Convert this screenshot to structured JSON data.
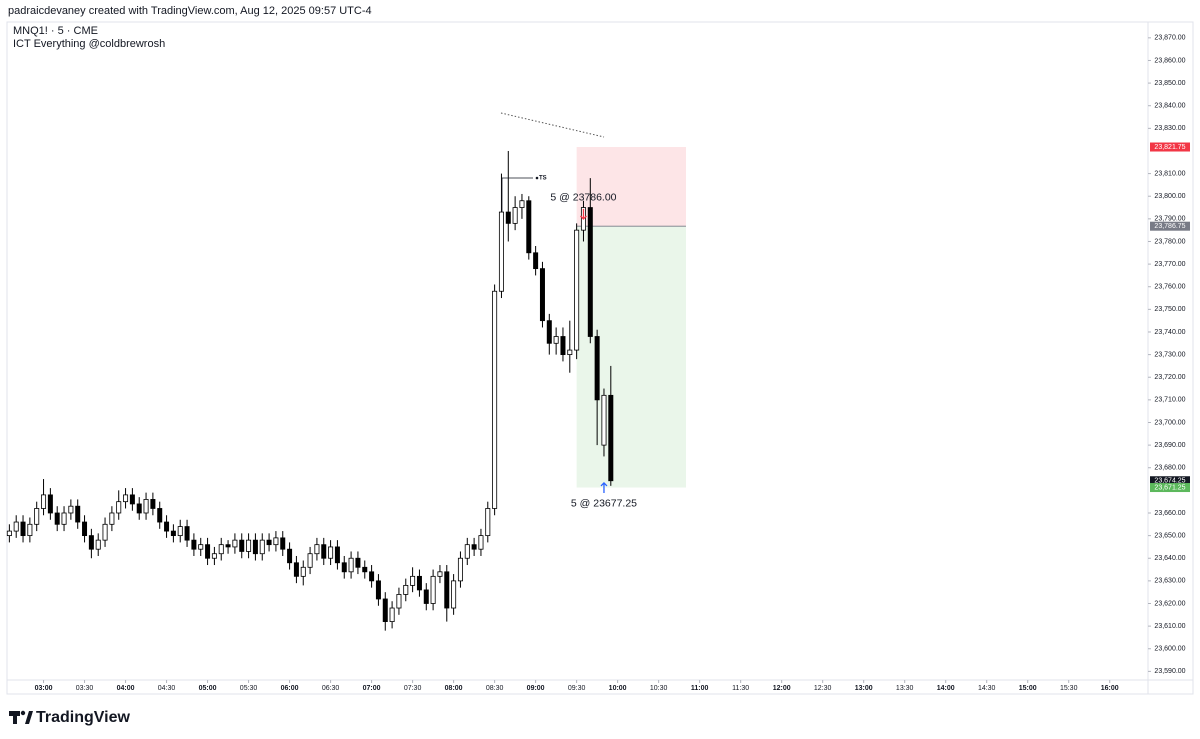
{
  "header": {
    "attribution": "padraicdevaney created with TradingView.com, Aug 12, 2025 09:57 UTC-4",
    "logo": "TradingView"
  },
  "chart_data": {
    "type": "candlestick",
    "symbol": "MNQ1! · 5 · CME",
    "indicator": "ICT Everything @coldbrewrosh",
    "x": [
      "02:35",
      "02:40",
      "02:45",
      "02:50",
      "02:55",
      "03:00",
      "03:05",
      "03:10",
      "03:15",
      "03:20",
      "03:25",
      "03:30",
      "03:35",
      "03:40",
      "03:45",
      "03:50",
      "03:55",
      "04:00",
      "04:05",
      "04:10",
      "04:15",
      "04:20",
      "04:25",
      "04:30",
      "04:35",
      "04:40",
      "04:45",
      "04:50",
      "04:55",
      "05:00",
      "05:05",
      "05:10",
      "05:15",
      "05:20",
      "05:25",
      "05:30",
      "05:35",
      "05:40",
      "05:45",
      "05:50",
      "05:55",
      "06:00",
      "06:05",
      "06:10",
      "06:15",
      "06:20",
      "06:25",
      "06:30",
      "06:35",
      "06:40",
      "06:45",
      "06:50",
      "06:55",
      "07:00",
      "07:05",
      "07:10",
      "07:15",
      "07:20",
      "07:25",
      "07:30",
      "07:35",
      "07:40",
      "07:45",
      "07:50",
      "07:55",
      "08:00",
      "08:05",
      "08:10",
      "08:15",
      "08:20",
      "08:25",
      "08:30",
      "08:35",
      "08:40",
      "08:45",
      "08:50",
      "08:55",
      "09:00",
      "09:05",
      "09:10",
      "09:15",
      "09:20",
      "09:25",
      "09:30",
      "09:35",
      "09:40",
      "09:45",
      "09:50",
      "09:55"
    ],
    "open": [
      23650,
      23652,
      23656,
      23650,
      23655,
      23662,
      23668,
      23660,
      23655,
      23660,
      23663,
      23656,
      23650,
      23644,
      23648,
      23655,
      23660,
      23665,
      23668,
      23664,
      23660,
      23666,
      23662,
      23656,
      23652,
      23650,
      23654,
      23648,
      23644,
      23646,
      23640,
      23642,
      23646,
      23645,
      23648,
      23643,
      23648,
      23642,
      23648,
      23646,
      23649,
      23644,
      23638,
      23632,
      23636,
      23642,
      23646,
      23640,
      23645,
      23638,
      23634,
      23640,
      23636,
      23634,
      23630,
      23622,
      23612,
      23618,
      23624,
      23628,
      23632,
      23626,
      23620,
      23632,
      23634,
      23618,
      23630,
      23640,
      23646,
      23644,
      23650,
      23662,
      23758,
      23793,
      23788,
      23795,
      23798,
      23775,
      23768,
      23745,
      23735,
      23738,
      23730,
      23732,
      23785,
      23795,
      23738,
      23690,
      23712
    ],
    "high": [
      23655,
      23659,
      23659,
      23658,
      23665,
      23675,
      23671,
      23663,
      23663,
      23666,
      23666,
      23659,
      23653,
      23651,
      23658,
      23663,
      23670,
      23671,
      23671,
      23667,
      23669,
      23669,
      23665,
      23659,
      23655,
      23657,
      23657,
      23651,
      23649,
      23649,
      23645,
      23649,
      23648,
      23651,
      23651,
      23651,
      23651,
      23651,
      23651,
      23652,
      23652,
      23647,
      23641,
      23639,
      23645,
      23649,
      23649,
      23648,
      23648,
      23641,
      23643,
      23643,
      23639,
      23637,
      23633,
      23625,
      23621,
      23627,
      23631,
      23636,
      23635,
      23629,
      23635,
      23637,
      23637,
      23633,
      23643,
      23649,
      23649,
      23653,
      23665,
      23761,
      23810,
      23820,
      23800,
      23801,
      23800,
      23778,
      23771,
      23748,
      23742,
      23742,
      23745,
      23788,
      23798,
      23808,
      23741,
      23715,
      23725
    ],
    "low": [
      23647,
      23649,
      23647,
      23647,
      23652,
      23659,
      23657,
      23652,
      23652,
      23657,
      23653,
      23647,
      23640,
      23641,
      23645,
      23652,
      23657,
      23662,
      23661,
      23657,
      23657,
      23659,
      23653,
      23649,
      23647,
      23647,
      23645,
      23641,
      23641,
      23637,
      23637,
      23639,
      23642,
      23642,
      23640,
      23640,
      23639,
      23639,
      23643,
      23643,
      23641,
      23635,
      23629,
      23628,
      23633,
      23639,
      23637,
      23637,
      23635,
      23631,
      23631,
      23633,
      23631,
      23627,
      23619,
      23608,
      23609,
      23615,
      23621,
      23625,
      23623,
      23617,
      23617,
      23629,
      23612,
      23615,
      23627,
      23637,
      23641,
      23641,
      23647,
      23659,
      23755,
      23780,
      23785,
      23790,
      23772,
      23765,
      23742,
      23730,
      23730,
      23727,
      23722,
      23728,
      23780,
      23735,
      23690,
      23685,
      23672
    ],
    "close": [
      23652,
      23656,
      23650,
      23655,
      23662,
      23668,
      23660,
      23655,
      23660,
      23663,
      23656,
      23650,
      23644,
      23648,
      23655,
      23660,
      23665,
      23668,
      23664,
      23660,
      23666,
      23662,
      23656,
      23652,
      23650,
      23654,
      23648,
      23644,
      23646,
      23640,
      23642,
      23646,
      23645,
      23648,
      23643,
      23648,
      23642,
      23648,
      23646,
      23649,
      23644,
      23638,
      23632,
      23636,
      23642,
      23646,
      23640,
      23645,
      23638,
      23634,
      23640,
      23636,
      23634,
      23630,
      23622,
      23612,
      23618,
      23624,
      23628,
      23632,
      23626,
      23620,
      23632,
      23634,
      23618,
      23630,
      23640,
      23646,
      23644,
      23650,
      23662,
      23758,
      23793,
      23788,
      23795,
      23798,
      23775,
      23768,
      23745,
      23735,
      23738,
      23730,
      23732,
      23785,
      23795,
      23738,
      23710,
      23712,
      23674.25
    ],
    "up_color": "#ffffff",
    "down_color": "#000000",
    "xlim": [
      "02:34",
      "16:28"
    ],
    "xticks": [
      "03:00",
      "03:30",
      "04:00",
      "04:30",
      "05:00",
      "05:30",
      "06:00",
      "06:30",
      "07:00",
      "07:30",
      "08:00",
      "08:30",
      "09:00",
      "09:30",
      "10:00",
      "10:30",
      "11:00",
      "11:30",
      "12:00",
      "12:30",
      "13:00",
      "13:30",
      "14:00",
      "14:30",
      "15:00",
      "15:30",
      "16:00"
    ],
    "ylim": [
      23580,
      23877
    ],
    "yticks": [
      {
        "value": 23590,
        "label": "23,590.00"
      },
      {
        "value": 23600,
        "label": "23,600.00"
      },
      {
        "value": 23610,
        "label": "23,610.00"
      },
      {
        "value": 23620,
        "label": "23,620.00"
      },
      {
        "value": 23630,
        "label": "23,630.00"
      },
      {
        "value": 23640,
        "label": "23,640.00"
      },
      {
        "value": 23650,
        "label": "23,650.00"
      },
      {
        "value": 23660,
        "label": "23,660.00"
      },
      {
        "value": 23680,
        "label": "23,680.00"
      },
      {
        "value": 23690,
        "label": "23,690.00"
      },
      {
        "value": 23700,
        "label": "23,700.00"
      },
      {
        "value": 23710,
        "label": "23,710.00"
      },
      {
        "value": 23720,
        "label": "23,720.00"
      },
      {
        "value": 23730,
        "label": "23,730.00"
      },
      {
        "value": 23740,
        "label": "23,740.00"
      },
      {
        "value": 23750,
        "label": "23,750.00"
      },
      {
        "value": 23760,
        "label": "23,760.00"
      },
      {
        "value": 23770,
        "label": "23,770.00"
      },
      {
        "value": 23780,
        "label": "23,780.00"
      },
      {
        "value": 23790,
        "label": "23,790.00"
      },
      {
        "value": 23800,
        "label": "23,800.00"
      },
      {
        "value": 23810,
        "label": "23,810.00"
      },
      {
        "value": 23830,
        "label": "23,830.00"
      },
      {
        "value": 23840,
        "label": "23,840.00"
      },
      {
        "value": 23850,
        "label": "23,850.00"
      },
      {
        "value": 23860,
        "label": "23,860.00"
      },
      {
        "value": 23870,
        "label": "23,870.00"
      }
    ],
    "position": {
      "start": "09:30",
      "end": "10:50",
      "stop": {
        "value": 23821.75,
        "label": "23,821.75",
        "color": "#f23645"
      },
      "entry": {
        "value": 23786.75,
        "label": "23,786.75",
        "color": "#787b86"
      },
      "target": {
        "value": 23671.25,
        "label": "23,671.25",
        "color": "#5cb85c"
      }
    },
    "last_price": {
      "value": 23674.25,
      "label": "23,674.25",
      "color": "#131722"
    },
    "trades": [
      {
        "time": "09:35",
        "price": 23786,
        "label": "5 @ 23786.00",
        "color": "#f23645"
      },
      {
        "time": "09:50",
        "price": 23677.25,
        "label": "5 @ 23677.25",
        "color": "#2962ff"
      }
    ],
    "ts_label": "TS"
  }
}
